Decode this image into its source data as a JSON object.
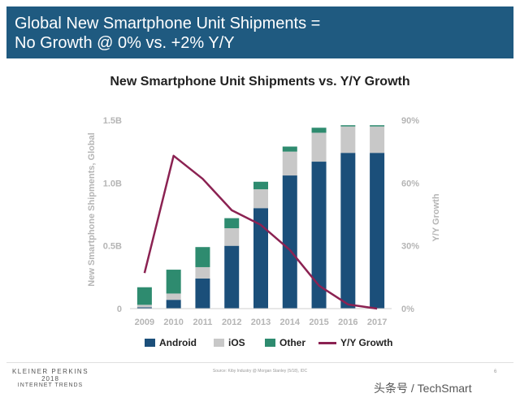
{
  "header": {
    "line1": "Global New Smartphone Unit Shipments =",
    "line2": "No Growth @ 0% vs. +2% Y/Y"
  },
  "chart_data": {
    "type": "bar",
    "stacked": true,
    "title": "New Smartphone Unit Shipments vs. Y/Y Growth",
    "xlabel": "",
    "ylabel": "New Smartphone Shipments, Global",
    "y2label": "Y/Y Growth",
    "categories": [
      "2009",
      "2010",
      "2011",
      "2012",
      "2013",
      "2014",
      "2015",
      "2016",
      "2017"
    ],
    "ylim": [
      0,
      1.5
    ],
    "yticks": [
      "0",
      "0.5B",
      "1.0B",
      "1.5B"
    ],
    "y2lim": [
      0,
      0.9
    ],
    "y2ticks": [
      "0%",
      "30%",
      "60%",
      "90%"
    ],
    "series": [
      {
        "name": "Android",
        "kind": "bar",
        "color": "#1b4f7a",
        "values": [
          0.01,
          0.07,
          0.24,
          0.5,
          0.8,
          1.06,
          1.17,
          1.24,
          1.24
        ]
      },
      {
        "name": "iOS",
        "kind": "bar",
        "color": "#c8c8c8",
        "values": [
          0.02,
          0.05,
          0.09,
          0.14,
          0.15,
          0.19,
          0.23,
          0.21,
          0.21
        ]
      },
      {
        "name": "Other",
        "kind": "bar",
        "color": "#2e8b6f",
        "values": [
          0.14,
          0.19,
          0.16,
          0.08,
          0.06,
          0.04,
          0.04,
          0.01,
          0.01
        ]
      },
      {
        "name": "Y/Y Growth",
        "kind": "line",
        "axis": "y2",
        "color": "#8b2252",
        "values": [
          0.17,
          0.73,
          0.62,
          0.47,
          0.4,
          0.28,
          0.11,
          0.02,
          0.0
        ]
      }
    ],
    "legend": "bottom",
    "grid": false
  },
  "footer": {
    "brand_line1": "KLEINER PERKINS",
    "brand_line2": "2018",
    "brand_line3": "INTERNET TRENDS",
    "source": "Source: Kiby Industry @ Morgan Stanley (5/18), IDC",
    "page_number": "6",
    "watermark": "头条号 / TechSmart"
  }
}
